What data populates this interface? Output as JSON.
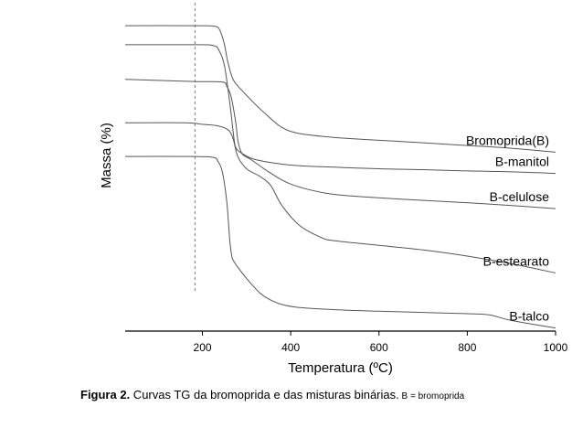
{
  "chart_data": {
    "type": "line",
    "title": "",
    "xlabel": "Temperatura (ºC)",
    "ylabel": "Massa (%)",
    "xlim": [
      25,
      1000
    ],
    "ylim": [
      0,
      100
    ],
    "xticks": [
      200,
      400,
      600,
      800,
      1000
    ],
    "grid": false,
    "reference_line": {
      "x": 183,
      "style": "dashed"
    },
    "series": [
      {
        "name": "Bromoprida(B)",
        "x": [
          25,
          180,
          228,
          240,
          250,
          258,
          270,
          290,
          320,
          350,
          380,
          420,
          500,
          600,
          700,
          800,
          900,
          1000
        ],
        "y": [
          95.2,
          95.2,
          95.0,
          93.5,
          89.0,
          83.0,
          77.5,
          74.0,
          69.5,
          65.5,
          62.0,
          60.0,
          58.7,
          57.8,
          57.0,
          56.1,
          55.2,
          53.9
        ]
      },
      {
        "name": "B-manitol",
        "x": [
          25,
          180,
          225,
          238,
          250,
          262,
          270,
          274,
          280,
          290,
          320,
          400,
          500,
          600,
          700,
          800,
          900,
          1000
        ],
        "y": [
          89.0,
          89.0,
          88.7,
          87.0,
          82.0,
          70.0,
          60.0,
          56.0,
          54.5,
          53.5,
          51.5,
          49.7,
          49.0,
          48.5,
          48.2,
          47.8,
          47.5,
          47.0
        ]
      },
      {
        "name": "B-celulose",
        "x": [
          25,
          180,
          245,
          255,
          265,
          275,
          280,
          285,
          292,
          310,
          350,
          400,
          480,
          550,
          650,
          750,
          850,
          1000
        ],
        "y": [
          77.7,
          77.0,
          76.8,
          75.5,
          72.0,
          64.0,
          58.0,
          55.0,
          53.0,
          51.5,
          47.5,
          43.5,
          40.5,
          39.5,
          38.6,
          37.8,
          37.0,
          35.5
        ]
      },
      {
        "name": "B-estearato",
        "x": [
          25,
          160,
          200,
          235,
          260,
          270,
          280,
          300,
          330,
          355,
          380,
          420,
          470,
          500,
          600,
          700,
          800,
          900,
          1000
        ],
        "y": [
          63.5,
          63.5,
          63.0,
          62.5,
          61.0,
          58.0,
          52.5,
          48.5,
          46.0,
          43.0,
          36.5,
          30.0,
          26.0,
          25.0,
          23.5,
          22.0,
          20.0,
          17.5,
          14.5
        ]
      },
      {
        "name": "B-talco",
        "x": [
          25,
          180,
          225,
          235,
          245,
          255,
          262,
          266,
          270,
          290,
          310,
          330,
          350,
          380,
          420,
          500,
          600,
          700,
          800,
          850,
          900,
          1000
        ],
        "y": [
          52.5,
          52.5,
          52.2,
          51.0,
          47.5,
          38.0,
          25.0,
          20.5,
          18.5,
          14.5,
          11.0,
          8.0,
          6.0,
          4.2,
          3.2,
          2.5,
          2.0,
          1.6,
          1.2,
          0.8,
          -1.0,
          -3.5
        ]
      }
    ]
  },
  "caption": {
    "label": "Figura 2.",
    "text": " Curvas TG da bromoprida e das misturas binárias.",
    "note": " B = bromoprida"
  }
}
